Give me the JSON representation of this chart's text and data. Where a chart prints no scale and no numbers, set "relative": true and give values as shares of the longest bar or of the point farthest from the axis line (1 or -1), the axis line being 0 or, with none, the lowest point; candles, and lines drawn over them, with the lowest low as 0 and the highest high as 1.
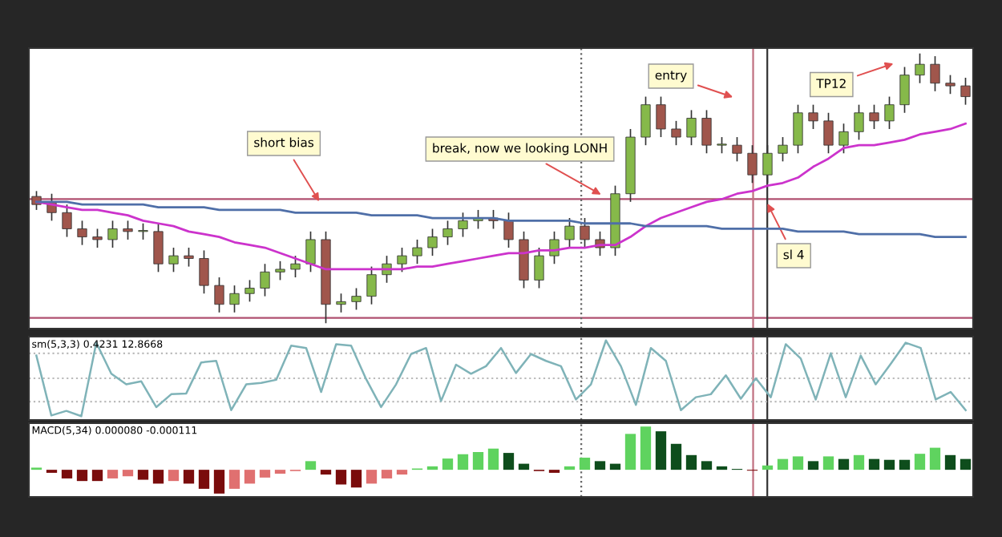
{
  "chart_data": [
    {
      "type": "candlestick",
      "relative": true,
      "categories": [
        null,
        null,
        null,
        null,
        null,
        null,
        null,
        null,
        null,
        null,
        null,
        null,
        null,
        null,
        null,
        null,
        null,
        null,
        null,
        null,
        null,
        null,
        null,
        null,
        null,
        null,
        null,
        null,
        null,
        null,
        null,
        null,
        null,
        null,
        null,
        null,
        null,
        null,
        null,
        null,
        null,
        null,
        null,
        null,
        null,
        null,
        null,
        null,
        null,
        null,
        null,
        null,
        null,
        null,
        null,
        null,
        null,
        null,
        null,
        null,
        null,
        null
      ],
      "ohlc": [
        [
          0.47,
          0.49,
          0.42,
          0.44
        ],
        [
          0.45,
          0.48,
          0.38,
          0.41
        ],
        [
          0.41,
          0.44,
          0.32,
          0.35
        ],
        [
          0.35,
          0.38,
          0.29,
          0.32
        ],
        [
          0.32,
          0.35,
          0.28,
          0.31
        ],
        [
          0.31,
          0.38,
          0.28,
          0.35
        ],
        [
          0.35,
          0.38,
          0.31,
          0.34
        ],
        [
          0.34,
          0.37,
          0.31,
          0.34
        ],
        [
          0.34,
          0.37,
          0.19,
          0.22
        ],
        [
          0.22,
          0.28,
          0.19,
          0.25
        ],
        [
          0.25,
          0.28,
          0.21,
          0.24
        ],
        [
          0.24,
          0.27,
          0.11,
          0.14
        ],
        [
          0.14,
          0.17,
          0.04,
          0.07
        ],
        [
          0.07,
          0.14,
          0.04,
          0.11
        ],
        [
          0.11,
          0.16,
          0.08,
          0.13
        ],
        [
          0.13,
          0.22,
          0.1,
          0.19
        ],
        [
          0.19,
          0.23,
          0.16,
          0.2
        ],
        [
          0.2,
          0.25,
          0.17,
          0.22
        ],
        [
          0.22,
          0.34,
          0.19,
          0.31
        ],
        [
          0.31,
          0.34,
          0.0,
          0.07
        ],
        [
          0.07,
          0.11,
          0.04,
          0.08
        ],
        [
          0.08,
          0.13,
          0.05,
          0.1
        ],
        [
          0.1,
          0.21,
          0.07,
          0.18
        ],
        [
          0.18,
          0.25,
          0.15,
          0.22
        ],
        [
          0.22,
          0.28,
          0.19,
          0.25
        ],
        [
          0.25,
          0.31,
          0.22,
          0.28
        ],
        [
          0.28,
          0.35,
          0.25,
          0.32
        ],
        [
          0.32,
          0.38,
          0.29,
          0.35
        ],
        [
          0.35,
          0.41,
          0.32,
          0.38
        ],
        [
          0.38,
          0.42,
          0.35,
          0.39
        ],
        [
          0.39,
          0.42,
          0.35,
          0.38
        ],
        [
          0.38,
          0.41,
          0.28,
          0.31
        ],
        [
          0.31,
          0.34,
          0.13,
          0.16
        ],
        [
          0.16,
          0.28,
          0.13,
          0.25
        ],
        [
          0.25,
          0.34,
          0.22,
          0.31
        ],
        [
          0.31,
          0.39,
          0.28,
          0.36
        ],
        [
          0.36,
          0.39,
          0.28,
          0.31
        ],
        [
          0.31,
          0.34,
          0.25,
          0.28
        ],
        [
          0.28,
          0.51,
          0.25,
          0.48
        ],
        [
          0.48,
          0.72,
          0.45,
          0.69
        ],
        [
          0.69,
          0.84,
          0.66,
          0.81
        ],
        [
          0.81,
          0.84,
          0.69,
          0.72
        ],
        [
          0.72,
          0.75,
          0.66,
          0.69
        ],
        [
          0.69,
          0.79,
          0.66,
          0.76
        ],
        [
          0.76,
          0.79,
          0.63,
          0.66
        ],
        [
          0.66,
          0.69,
          0.63,
          0.66
        ],
        [
          0.66,
          0.69,
          0.6,
          0.63
        ],
        [
          0.63,
          0.66,
          0.52,
          0.55
        ],
        [
          0.55,
          0.66,
          0.52,
          0.63
        ],
        [
          0.63,
          0.69,
          0.6,
          0.66
        ],
        [
          0.66,
          0.81,
          0.63,
          0.78
        ],
        [
          0.78,
          0.81,
          0.72,
          0.75
        ],
        [
          0.75,
          0.78,
          0.63,
          0.66
        ],
        [
          0.66,
          0.74,
          0.63,
          0.71
        ],
        [
          0.71,
          0.81,
          0.68,
          0.78
        ],
        [
          0.78,
          0.81,
          0.72,
          0.75
        ],
        [
          0.75,
          0.84,
          0.72,
          0.81
        ],
        [
          0.81,
          0.95,
          0.78,
          0.92
        ],
        [
          0.92,
          1.0,
          0.89,
          0.96
        ],
        [
          0.96,
          0.99,
          0.86,
          0.89
        ],
        [
          0.89,
          0.92,
          0.85,
          0.88
        ],
        [
          0.88,
          0.91,
          0.81,
          0.84
        ]
      ],
      "series": [
        {
          "type": "line",
          "color": "#cc33cc",
          "values": [
            0.45,
            0.44,
            0.43,
            0.42,
            0.42,
            0.41,
            0.4,
            0.38,
            0.37,
            0.36,
            0.34,
            0.33,
            0.32,
            0.3,
            0.29,
            0.28,
            0.26,
            0.24,
            0.22,
            0.2,
            0.2,
            0.2,
            0.2,
            0.2,
            0.2,
            0.21,
            0.21,
            0.22,
            0.23,
            0.24,
            0.25,
            0.26,
            0.26,
            0.27,
            0.27,
            0.28,
            0.28,
            0.29,
            0.29,
            0.32,
            0.36,
            0.39,
            0.41,
            0.43,
            0.45,
            0.46,
            0.48,
            0.49,
            0.51,
            0.52,
            0.54,
            0.58,
            0.61,
            0.65,
            0.66,
            0.66,
            0.67,
            0.68,
            0.7,
            0.71,
            0.72,
            0.74
          ]
        },
        {
          "type": "line",
          "color": "#4f6fa8",
          "values": [
            0.45,
            0.45,
            0.45,
            0.44,
            0.44,
            0.44,
            0.44,
            0.44,
            0.43,
            0.43,
            0.43,
            0.43,
            0.42,
            0.42,
            0.42,
            0.42,
            0.42,
            0.41,
            0.41,
            0.41,
            0.41,
            0.41,
            0.4,
            0.4,
            0.4,
            0.4,
            0.39,
            0.39,
            0.39,
            0.39,
            0.39,
            0.38,
            0.38,
            0.38,
            0.38,
            0.38,
            0.37,
            0.37,
            0.37,
            0.37,
            0.36,
            0.36,
            0.36,
            0.36,
            0.36,
            0.35,
            0.35,
            0.35,
            0.35,
            0.35,
            0.34,
            0.34,
            0.34,
            0.34,
            0.33,
            0.33,
            0.33,
            0.33,
            0.33,
            0.32,
            0.32,
            0.32
          ]
        }
      ],
      "ref_lines": [
        {
          "axis": "y",
          "value": 0.46,
          "color": "#b05070",
          "line_style": "solid"
        },
        {
          "axis": "y",
          "value": 0.02,
          "color": "#b05070",
          "line_style": "solid"
        }
      ],
      "annotations": [
        "short bias",
        "break, now we looking LONH",
        "entry",
        "sl 4",
        "TP12"
      ],
      "tick_labels": false
    },
    {
      "type": "line",
      "relative": true,
      "title": "sm(5,3,3) 0.4231 12.8668",
      "tick_labels": false,
      "categories": [
        null,
        null,
        null,
        null,
        null,
        null,
        null,
        null,
        null,
        null,
        null,
        null,
        null,
        null,
        null,
        null,
        null,
        null,
        null,
        null,
        null,
        null,
        null,
        null,
        null,
        null,
        null,
        null,
        null,
        null,
        null,
        null,
        null,
        null,
        null,
        null,
        null,
        null,
        null,
        null,
        null,
        null,
        null,
        null,
        null,
        null,
        null,
        null,
        null,
        null,
        null,
        null,
        null,
        null,
        null,
        null,
        null,
        null,
        null,
        null,
        null,
        null,
        null
      ],
      "series": [
        {
          "color": "#7fb3b8",
          "values": [
            0.8,
            0.01,
            0.07,
            0,
            0.97,
            0.56,
            0.42,
            0.46,
            0.12,
            0.29,
            0.3,
            0.71,
            0.73,
            0.08,
            0.42,
            0.44,
            0.48,
            0.93,
            0.9,
            0.32,
            0.95,
            0.93,
            0.49,
            0.12,
            0.42,
            0.82,
            0.9,
            0.2,
            0.68,
            0.56,
            0.66,
            0.9,
            0.57,
            0.82,
            0.73,
            0.66,
            0.22,
            0.42,
            1.0,
            0.66,
            0.15,
            0.9,
            0.73,
            0.08,
            0.25,
            0.29,
            0.54,
            0.23,
            0.5,
            0.25,
            0.95,
            0.76,
            0.22,
            0.83,
            0.25,
            0.8,
            0.42,
            0.69,
            0.97,
            0.9,
            0.22,
            0.32,
            0.08
          ]
        }
      ]
    },
    {
      "type": "bar",
      "relative": true,
      "title": "MACD(5,34) 0.000080 -0.000111",
      "tick_labels": false,
      "categories": [
        null,
        null,
        null,
        null,
        null,
        null,
        null,
        null,
        null,
        null,
        null,
        null,
        null,
        null,
        null,
        null,
        null,
        null,
        null,
        null,
        null,
        null,
        null,
        null,
        null,
        null,
        null,
        null,
        null,
        null,
        null,
        null,
        null,
        null,
        null,
        null,
        null,
        null,
        null,
        null,
        null,
        null,
        null,
        null,
        null,
        null,
        null,
        null,
        null,
        null,
        null,
        null,
        null,
        null,
        null,
        null,
        null,
        null,
        null,
        null,
        null,
        null
      ],
      "values": [
        0.05,
        -0.07,
        -0.2,
        -0.26,
        -0.26,
        -0.2,
        -0.15,
        -0.23,
        -0.32,
        -0.26,
        -0.32,
        -0.44,
        -0.55,
        -0.44,
        -0.32,
        -0.18,
        -0.09,
        -0.03,
        0.2,
        -0.11,
        -0.34,
        -0.41,
        -0.32,
        -0.2,
        -0.11,
        0.03,
        0.08,
        0.26,
        0.36,
        0.41,
        0.49,
        0.39,
        0.14,
        -0.03,
        -0.07,
        0.08,
        0.28,
        0.2,
        0.14,
        0.83,
        1.0,
        0.89,
        0.6,
        0.34,
        0.2,
        0.08,
        0.02,
        -0.02,
        0.1,
        0.25,
        0.31,
        0.2,
        0.31,
        0.25,
        0.34,
        0.25,
        0.23,
        0.23,
        0.37,
        0.51,
        0.34,
        0.25
      ],
      "colors": [
        "#5fd35f",
        "#7a0c0c",
        "#7a0c0c",
        "#7a0c0c",
        "#7a0c0c",
        "#e07070",
        "#e07070",
        "#7a0c0c",
        "#7a0c0c",
        "#e07070",
        "#7a0c0c",
        "#7a0c0c",
        "#7a0c0c",
        "#e07070",
        "#e07070",
        "#e07070",
        "#e07070",
        "#e07070",
        "#5fd35f",
        "#7a0c0c",
        "#7a0c0c",
        "#7a0c0c",
        "#e07070",
        "#e07070",
        "#e07070",
        "#5fd35f",
        "#5fd35f",
        "#5fd35f",
        "#5fd35f",
        "#5fd35f",
        "#5fd35f",
        "#0e4d1c",
        "#0e4d1c",
        "#7a0c0c",
        "#7a0c0c",
        "#5fd35f",
        "#5fd35f",
        "#0e4d1c",
        "#0e4d1c",
        "#5fd35f",
        "#5fd35f",
        "#0e4d1c",
        "#0e4d1c",
        "#0e4d1c",
        "#0e4d1c",
        "#0e4d1c",
        "#0e4d1c",
        "#7a0c0c",
        "#5fd35f",
        "#5fd35f",
        "#5fd35f",
        "#0e4d1c",
        "#5fd35f",
        "#0e4d1c",
        "#5fd35f",
        "#0e4d1c",
        "#0e4d1c",
        "#0e4d1c",
        "#5fd35f",
        "#5fd35f",
        "#0e4d1c",
        "#0e4d1c"
      ]
    }
  ]
}
